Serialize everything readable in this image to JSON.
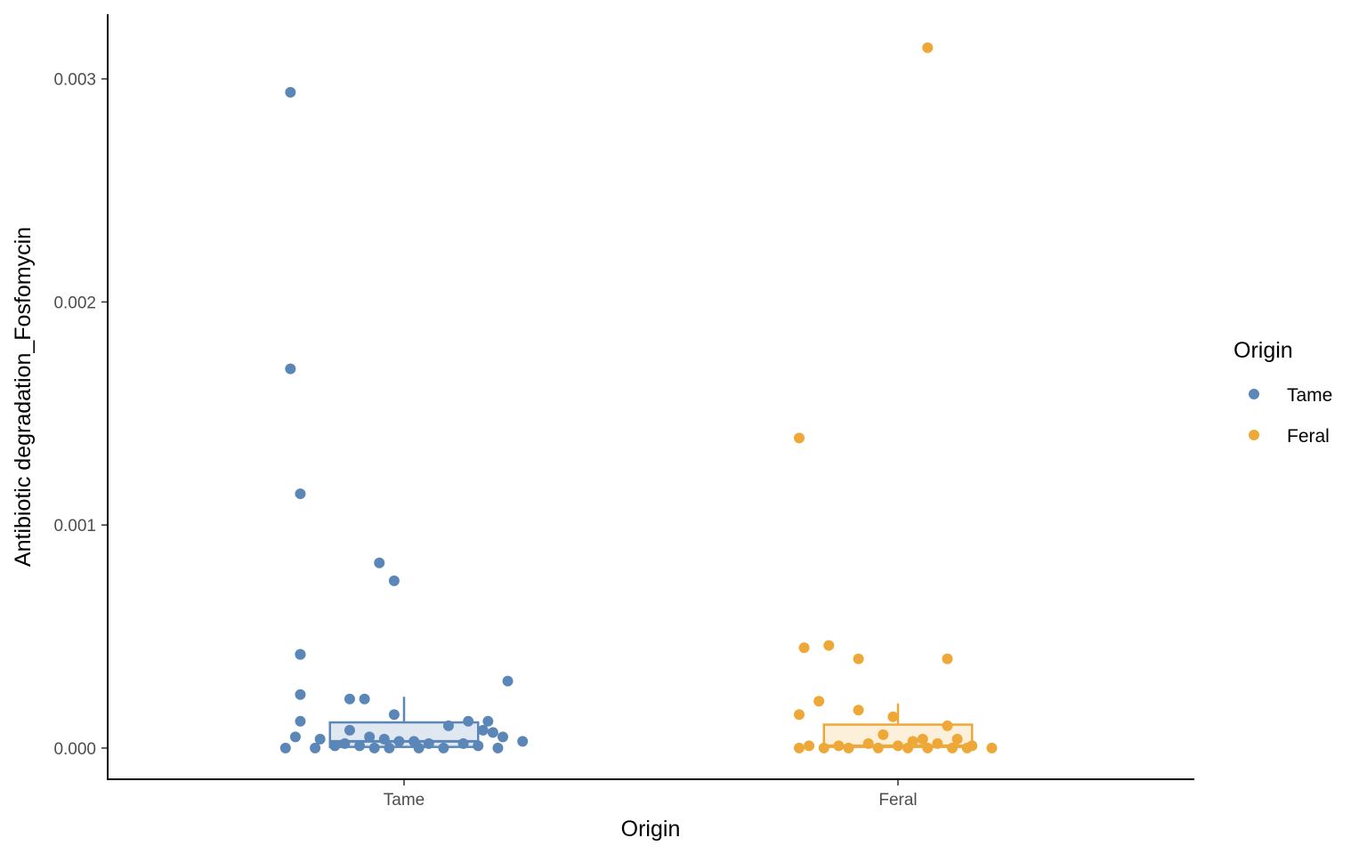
{
  "chart_data": {
    "type": "box_with_jitter",
    "xlabel": "Origin",
    "ylabel": "Antibiotic degradation_Fosfomycin",
    "categories": [
      "Tame",
      "Feral"
    ],
    "ylim": [
      -0.00014,
      0.00329
    ],
    "yticks": [
      {
        "value": 0.0,
        "label": "0.000"
      },
      {
        "value": 0.001,
        "label": "0.001"
      },
      {
        "value": 0.002,
        "label": "0.002"
      },
      {
        "value": 0.003,
        "label": "0.003"
      }
    ],
    "grid": false,
    "legend": {
      "title": "Origin",
      "position": "right",
      "entries": [
        {
          "label": "Tame",
          "color": "#5b86b8"
        },
        {
          "label": "Feral",
          "color": "#eda838"
        }
      ]
    },
    "series": [
      {
        "category": "Tame",
        "color": "#5b86b8",
        "fill": "#dfe7f1",
        "box": {
          "q1": 5e-06,
          "median": 3e-05,
          "q3": 0.000115,
          "whisker_low": 0.0,
          "whisker_high": 0.00023
        },
        "points": [
          {
            "x": -0.23,
            "y": 0.00294
          },
          {
            "x": -0.23,
            "y": 0.0017
          },
          {
            "x": -0.21,
            "y": 0.00114
          },
          {
            "x": -0.05,
            "y": 0.00083
          },
          {
            "x": -0.02,
            "y": 0.00075
          },
          {
            "x": -0.21,
            "y": 0.00042
          },
          {
            "x": -0.21,
            "y": 0.00042
          },
          {
            "x": 0.21,
            "y": 0.0003
          },
          {
            "x": -0.21,
            "y": 0.00024
          },
          {
            "x": -0.11,
            "y": 0.00022
          },
          {
            "x": -0.08,
            "y": 0.00022
          },
          {
            "x": -0.02,
            "y": 0.00015
          },
          {
            "x": -0.21,
            "y": 0.00012
          },
          {
            "x": 0.13,
            "y": 0.00012
          },
          {
            "x": 0.17,
            "y": 0.00012
          },
          {
            "x": 0.09,
            "y": 0.0001
          },
          {
            "x": -0.11,
            "y": 8e-05
          },
          {
            "x": 0.16,
            "y": 8e-05
          },
          {
            "x": 0.18,
            "y": 7e-05
          },
          {
            "x": -0.22,
            "y": 5e-05
          },
          {
            "x": 0.2,
            "y": 5e-05
          },
          {
            "x": -0.07,
            "y": 5e-05
          },
          {
            "x": -0.17,
            "y": 4e-05
          },
          {
            "x": -0.04,
            "y": 4e-05
          },
          {
            "x": -0.01,
            "y": 3e-05
          },
          {
            "x": 0.02,
            "y": 3e-05
          },
          {
            "x": 0.05,
            "y": 2e-05
          },
          {
            "x": -0.12,
            "y": 2e-05
          },
          {
            "x": 0.12,
            "y": 2e-05
          },
          {
            "x": 0.15,
            "y": 1e-05
          },
          {
            "x": -0.14,
            "y": 1e-05
          },
          {
            "x": -0.09,
            "y": 1e-05
          },
          {
            "x": -0.03,
            "y": 0.0
          },
          {
            "x": 0.03,
            "y": 0.0
          },
          {
            "x": 0.08,
            "y": 0.0
          },
          {
            "x": -0.18,
            "y": 0.0
          },
          {
            "x": -0.24,
            "y": 0.0
          },
          {
            "x": 0.19,
            "y": 0.0
          },
          {
            "x": 0.24,
            "y": 3e-05
          },
          {
            "x": -0.06,
            "y": 0.0
          }
        ]
      },
      {
        "category": "Feral",
        "color": "#eda838",
        "fill": "#fdf0da",
        "box": {
          "q1": 5e-06,
          "median": 1e-05,
          "q3": 0.000105,
          "whisker_low": 0.0,
          "whisker_high": 0.0002
        },
        "points": [
          {
            "x": 0.06,
            "y": 0.00314
          },
          {
            "x": -0.2,
            "y": 0.00139
          },
          {
            "x": -0.14,
            "y": 0.00046
          },
          {
            "x": -0.19,
            "y": 0.00045
          },
          {
            "x": -0.08,
            "y": 0.0004
          },
          {
            "x": 0.1,
            "y": 0.0004
          },
          {
            "x": -0.16,
            "y": 0.00021
          },
          {
            "x": -0.08,
            "y": 0.00017
          },
          {
            "x": -0.2,
            "y": 0.00015
          },
          {
            "x": -0.01,
            "y": 0.00014
          },
          {
            "x": 0.1,
            "y": 0.0001
          },
          {
            "x": -0.03,
            "y": 6e-05
          },
          {
            "x": 0.05,
            "y": 4e-05
          },
          {
            "x": 0.12,
            "y": 4e-05
          },
          {
            "x": 0.03,
            "y": 3e-05
          },
          {
            "x": -0.06,
            "y": 2e-05
          },
          {
            "x": 0.08,
            "y": 2e-05
          },
          {
            "x": -0.18,
            "y": 1e-05
          },
          {
            "x": -0.12,
            "y": 1e-05
          },
          {
            "x": 0.0,
            "y": 1e-05
          },
          {
            "x": 0.15,
            "y": 1e-05
          },
          {
            "x": -0.15,
            "y": 0.0
          },
          {
            "x": -0.1,
            "y": 0.0
          },
          {
            "x": -0.04,
            "y": 0.0
          },
          {
            "x": 0.02,
            "y": 0.0
          },
          {
            "x": 0.06,
            "y": 0.0
          },
          {
            "x": 0.11,
            "y": 0.0
          },
          {
            "x": 0.19,
            "y": 0.0
          },
          {
            "x": -0.2,
            "y": 0.0
          },
          {
            "x": 0.14,
            "y": 0.0
          }
        ]
      }
    ]
  }
}
